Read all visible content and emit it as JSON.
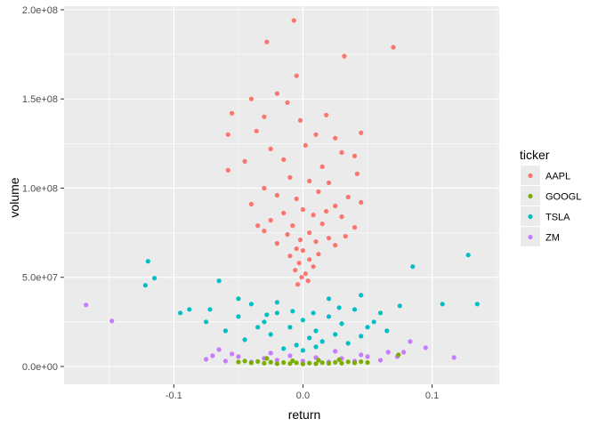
{
  "chart_data": {
    "type": "scatter",
    "title": "",
    "xlabel": "return",
    "ylabel": "volume",
    "xlim": [
      -0.185,
      0.152
    ],
    "ylim": [
      -10000000.0,
      202000000.0
    ],
    "x_ticks": [
      {
        "value": -0.1,
        "label": "-0.1"
      },
      {
        "value": 0.0,
        "label": "0.0"
      },
      {
        "value": 0.1,
        "label": "0.1"
      }
    ],
    "y_ticks": [
      {
        "value": 0,
        "label": "0.0e+00"
      },
      {
        "value": 50000000,
        "label": "5.0e+07"
      },
      {
        "value": 100000000,
        "label": "1.0e+08"
      },
      {
        "value": 150000000,
        "label": "1.5e+08"
      },
      {
        "value": 200000000,
        "label": "2.0e+08"
      }
    ],
    "grid": true,
    "panel_background": "#ebebeb",
    "grid_color": "#ffffff",
    "legend": {
      "title": "ticker",
      "placement": "right",
      "entries": [
        {
          "name": "AAPL",
          "color": "#f8766d"
        },
        {
          "name": "GOOGL",
          "color": "#7cae00"
        },
        {
          "name": "TSLA",
          "color": "#00bfc4"
        },
        {
          "name": "ZM",
          "color": "#c77cff"
        }
      ]
    },
    "series": [
      {
        "name": "AAPL",
        "color": "#f8766d",
        "points": [
          [
            -0.007,
            194000000
          ],
          [
            -0.028,
            182000000
          ],
          [
            0.07,
            179000000
          ],
          [
            0.032,
            174000000
          ],
          [
            -0.005,
            163000000
          ],
          [
            -0.02,
            153000000
          ],
          [
            -0.04,
            150000000
          ],
          [
            -0.012,
            148000000
          ],
          [
            -0.055,
            142000000
          ],
          [
            -0.03,
            140000000
          ],
          [
            0.018,
            141000000
          ],
          [
            0.01,
            130000000
          ],
          [
            -0.058,
            130000000
          ],
          [
            -0.036,
            132000000
          ],
          [
            0.045,
            131000000
          ],
          [
            -0.002,
            138000000
          ],
          [
            0.025,
            128000000
          ],
          [
            0.002,
            124000000
          ],
          [
            -0.025,
            122000000
          ],
          [
            0.03,
            120000000
          ],
          [
            0.04,
            118000000
          ],
          [
            -0.015,
            116000000
          ],
          [
            -0.045,
            115000000
          ],
          [
            0.015,
            112000000
          ],
          [
            -0.058,
            110000000
          ],
          [
            0.042,
            108000000
          ],
          [
            -0.01,
            106000000
          ],
          [
            0.005,
            104000000
          ],
          [
            0.02,
            103000000
          ],
          [
            -0.03,
            100000000
          ],
          [
            0.012,
            98000000
          ],
          [
            -0.02,
            96000000
          ],
          [
            0.035,
            95000000
          ],
          [
            -0.005,
            94000000
          ],
          [
            0.045,
            92000000
          ],
          [
            -0.04,
            91000000
          ],
          [
            0.025,
            90000000
          ],
          [
            0.0,
            88000000
          ],
          [
            -0.015,
            86000000
          ],
          [
            0.008,
            85000000
          ],
          [
            0.03,
            84000000
          ],
          [
            -0.025,
            82000000
          ],
          [
            0.015,
            80000000
          ],
          [
            -0.008,
            79000000
          ],
          [
            0.04,
            78000000
          ],
          [
            -0.03,
            76000000
          ],
          [
            0.005,
            75000000
          ],
          [
            -0.012,
            74000000
          ],
          [
            0.02,
            72000000
          ],
          [
            -0.002,
            71000000
          ],
          [
            0.01,
            70000000
          ],
          [
            -0.02,
            69000000
          ],
          [
            0.025,
            68000000
          ],
          [
            -0.005,
            66000000
          ],
          [
            0.0,
            65000000
          ],
          [
            0.012,
            63000000
          ],
          [
            -0.01,
            62000000
          ],
          [
            0.005,
            60000000
          ],
          [
            -0.003,
            58000000
          ],
          [
            0.008,
            56000000
          ],
          [
            -0.006,
            54000000
          ],
          [
            0.002,
            52000000
          ],
          [
            -0.001,
            50000000
          ],
          [
            0.004,
            48000000
          ],
          [
            -0.004,
            46000000
          ],
          [
            0.018,
            87000000
          ],
          [
            -0.035,
            79000000
          ],
          [
            0.033,
            73000000
          ]
        ]
      },
      {
        "name": "TSLA",
        "color": "#00bfc4",
        "points": [
          [
            -0.12,
            59000000
          ],
          [
            -0.115,
            49500000
          ],
          [
            -0.122,
            45500000
          ],
          [
            0.128,
            62500000
          ],
          [
            0.085,
            56000000
          ],
          [
            0.135,
            35000000
          ],
          [
            0.108,
            35000000
          ],
          [
            -0.088,
            32000000
          ],
          [
            -0.095,
            30000000
          ],
          [
            -0.065,
            48000000
          ],
          [
            -0.072,
            32000000
          ],
          [
            -0.05,
            28000000
          ],
          [
            -0.04,
            35000000
          ],
          [
            -0.03,
            25000000
          ],
          [
            -0.02,
            30000000
          ],
          [
            -0.01,
            22000000
          ],
          [
            0.0,
            26000000
          ],
          [
            0.01,
            20000000
          ],
          [
            0.02,
            28000000
          ],
          [
            0.03,
            24000000
          ],
          [
            0.04,
            32000000
          ],
          [
            0.05,
            22000000
          ],
          [
            0.06,
            30000000
          ],
          [
            0.075,
            34000000
          ],
          [
            -0.06,
            20000000
          ],
          [
            -0.045,
            15000000
          ],
          [
            -0.025,
            18000000
          ],
          [
            -0.005,
            12000000
          ],
          [
            0.005,
            16000000
          ],
          [
            0.015,
            14000000
          ],
          [
            0.025,
            18000000
          ],
          [
            0.035,
            13000000
          ],
          [
            0.045,
            17000000
          ],
          [
            0.055,
            25000000
          ],
          [
            -0.035,
            22000000
          ],
          [
            -0.015,
            10000000
          ],
          [
            0.0,
            9000000
          ],
          [
            0.01,
            11000000
          ],
          [
            -0.05,
            38000000
          ],
          [
            0.045,
            40000000
          ],
          [
            0.02,
            38000000
          ],
          [
            -0.02,
            36000000
          ],
          [
            0.065,
            20000000
          ],
          [
            -0.075,
            25000000
          ],
          [
            0.008,
            30000000
          ],
          [
            -0.008,
            31000000
          ],
          [
            0.028,
            33000000
          ],
          [
            -0.028,
            29000000
          ]
        ]
      },
      {
        "name": "ZM",
        "color": "#c77cff",
        "points": [
          [
            -0.168,
            34500000
          ],
          [
            -0.148,
            25500000
          ],
          [
            0.117,
            5000000
          ],
          [
            0.095,
            10500000
          ],
          [
            0.083,
            14000000
          ],
          [
            0.078,
            8000000
          ],
          [
            0.073,
            5500000
          ],
          [
            -0.075,
            4000000
          ],
          [
            -0.07,
            6000000
          ],
          [
            -0.06,
            3000000
          ],
          [
            -0.05,
            5500000
          ],
          [
            -0.04,
            2500000
          ],
          [
            -0.03,
            4500000
          ],
          [
            -0.02,
            3500000
          ],
          [
            -0.01,
            6000000
          ],
          [
            0.0,
            3000000
          ],
          [
            0.01,
            5000000
          ],
          [
            0.02,
            2500000
          ],
          [
            0.03,
            4500000
          ],
          [
            0.04,
            3000000
          ],
          [
            0.05,
            5500000
          ],
          [
            0.06,
            3500000
          ],
          [
            0.066,
            8000000
          ],
          [
            -0.065,
            9500000
          ],
          [
            -0.055,
            7000000
          ],
          [
            0.045,
            6500000
          ],
          [
            -0.025,
            7500000
          ],
          [
            0.025,
            8500000
          ]
        ]
      },
      {
        "name": "GOOGL",
        "color": "#7cae00",
        "points": [
          [
            -0.05,
            2500000
          ],
          [
            -0.045,
            3000000
          ],
          [
            -0.04,
            2000000
          ],
          [
            -0.035,
            2800000
          ],
          [
            -0.03,
            1800000
          ],
          [
            -0.025,
            2400000
          ],
          [
            -0.02,
            1500000
          ],
          [
            -0.015,
            2200000
          ],
          [
            -0.01,
            1600000
          ],
          [
            -0.005,
            2000000
          ],
          [
            0.0,
            1400000
          ],
          [
            0.005,
            1900000
          ],
          [
            0.01,
            1500000
          ],
          [
            0.015,
            2100000
          ],
          [
            0.02,
            1700000
          ],
          [
            0.025,
            2300000
          ],
          [
            0.03,
            1800000
          ],
          [
            0.035,
            2600000
          ],
          [
            0.04,
            2000000
          ],
          [
            0.045,
            2700000
          ],
          [
            0.05,
            2200000
          ],
          [
            0.074,
            6500000
          ],
          [
            -0.028,
            4500000
          ],
          [
            0.012,
            3500000
          ],
          [
            -0.008,
            3200000
          ],
          [
            0.028,
            3800000
          ]
        ]
      }
    ]
  }
}
